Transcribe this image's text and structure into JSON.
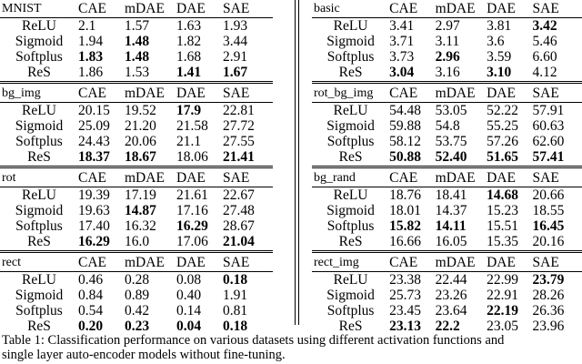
{
  "columns": [
    "CAE",
    "mDAE",
    "DAE",
    "SAE"
  ],
  "activations": [
    "ReLU",
    "Sigmoid",
    "Softplus",
    "ReS"
  ],
  "left_tables": [
    {
      "name": "MNIST",
      "rows": [
        [
          {
            "v": "2.1"
          },
          {
            "v": "1.57"
          },
          {
            "v": "1.63"
          },
          {
            "v": "1.93"
          }
        ],
        [
          {
            "v": "1.94"
          },
          {
            "v": "1.48",
            "b": true
          },
          {
            "v": "1.82"
          },
          {
            "v": "3.44"
          }
        ],
        [
          {
            "v": "1.83",
            "b": true
          },
          {
            "v": "1.48",
            "b": true
          },
          {
            "v": "1.68"
          },
          {
            "v": "2.91"
          }
        ],
        [
          {
            "v": "1.86"
          },
          {
            "v": "1.53"
          },
          {
            "v": "1.41",
            "b": true
          },
          {
            "v": "1.67",
            "b": true
          }
        ]
      ]
    },
    {
      "name": "bg_img",
      "rows": [
        [
          {
            "v": "20.15"
          },
          {
            "v": "19.52"
          },
          {
            "v": "17.9",
            "b": true
          },
          {
            "v": "22.81"
          }
        ],
        [
          {
            "v": "25.09"
          },
          {
            "v": "21.20"
          },
          {
            "v": "21.58"
          },
          {
            "v": "27.72"
          }
        ],
        [
          {
            "v": "24.43"
          },
          {
            "v": "20.06"
          },
          {
            "v": "21.1"
          },
          {
            "v": "27.55"
          }
        ],
        [
          {
            "v": "18.37",
            "b": true
          },
          {
            "v": "18.67",
            "b": true
          },
          {
            "v": "18.06"
          },
          {
            "v": "21.41",
            "b": true
          }
        ]
      ]
    },
    {
      "name": "rot",
      "rows": [
        [
          {
            "v": "19.39"
          },
          {
            "v": "17.19"
          },
          {
            "v": "21.61"
          },
          {
            "v": "22.67"
          }
        ],
        [
          {
            "v": "19.63"
          },
          {
            "v": "14.87",
            "b": true
          },
          {
            "v": "17.16"
          },
          {
            "v": "27.48"
          }
        ],
        [
          {
            "v": "17.40"
          },
          {
            "v": "16.32"
          },
          {
            "v": "16.29",
            "b": true
          },
          {
            "v": "28.67"
          }
        ],
        [
          {
            "v": "16.29",
            "b": true
          },
          {
            "v": "16.0"
          },
          {
            "v": "17.06"
          },
          {
            "v": "21.04",
            "b": true
          }
        ]
      ]
    },
    {
      "name": "rect",
      "rows": [
        [
          {
            "v": "0.46"
          },
          {
            "v": "0.28"
          },
          {
            "v": "0.08"
          },
          {
            "v": "0.18",
            "b": true
          }
        ],
        [
          {
            "v": "0.84"
          },
          {
            "v": "0.89"
          },
          {
            "v": "0.40"
          },
          {
            "v": "1.91"
          }
        ],
        [
          {
            "v": "0.54"
          },
          {
            "v": "0.42"
          },
          {
            "v": "0.14"
          },
          {
            "v": "0.81"
          }
        ],
        [
          {
            "v": "0.20",
            "b": true
          },
          {
            "v": "0.23",
            "b": true
          },
          {
            "v": "0.04",
            "b": true
          },
          {
            "v": "0.18",
            "b": true
          }
        ]
      ]
    }
  ],
  "right_tables": [
    {
      "name": "basic",
      "rows": [
        [
          {
            "v": "3.41"
          },
          {
            "v": "2.97"
          },
          {
            "v": "3.81"
          },
          {
            "v": "3.42",
            "b": true
          }
        ],
        [
          {
            "v": "3.71"
          },
          {
            "v": "3.11"
          },
          {
            "v": "3.6"
          },
          {
            "v": "5.46"
          }
        ],
        [
          {
            "v": "3.73"
          },
          {
            "v": "2.96",
            "b": true
          },
          {
            "v": "3.59"
          },
          {
            "v": "6.60"
          }
        ],
        [
          {
            "v": "3.04",
            "b": true
          },
          {
            "v": "3.16"
          },
          {
            "v": "3.10",
            "b": true
          },
          {
            "v": "4.12"
          }
        ]
      ]
    },
    {
      "name": "rot_bg_img",
      "rows": [
        [
          {
            "v": "54.48"
          },
          {
            "v": "53.05"
          },
          {
            "v": "52.22"
          },
          {
            "v": "57.91"
          }
        ],
        [
          {
            "v": "59.88"
          },
          {
            "v": "54.8"
          },
          {
            "v": "55.25"
          },
          {
            "v": "60.63"
          }
        ],
        [
          {
            "v": "58.12"
          },
          {
            "v": "53.75"
          },
          {
            "v": "57.26"
          },
          {
            "v": "62.60"
          }
        ],
        [
          {
            "v": "50.88",
            "b": true
          },
          {
            "v": "52.40",
            "b": true
          },
          {
            "v": "51.65",
            "b": true
          },
          {
            "v": "57.41",
            "b": true
          }
        ]
      ]
    },
    {
      "name": "bg_rand",
      "rows": [
        [
          {
            "v": "18.76"
          },
          {
            "v": "18.41"
          },
          {
            "v": "14.68",
            "b": true
          },
          {
            "v": "20.66"
          }
        ],
        [
          {
            "v": "18.01"
          },
          {
            "v": "14.37"
          },
          {
            "v": "15.23"
          },
          {
            "v": "18.55"
          }
        ],
        [
          {
            "v": "15.82",
            "b": true
          },
          {
            "v": "14.11",
            "b": true
          },
          {
            "v": "15.51"
          },
          {
            "v": "16.45",
            "b": true
          }
        ],
        [
          {
            "v": "16.66"
          },
          {
            "v": "16.05"
          },
          {
            "v": "15.35"
          },
          {
            "v": "20.16"
          }
        ]
      ]
    },
    {
      "name": "rect_img",
      "rows": [
        [
          {
            "v": "23.38"
          },
          {
            "v": "22.44"
          },
          {
            "v": "22.99"
          },
          {
            "v": "23.79",
            "b": true
          }
        ],
        [
          {
            "v": "25.73"
          },
          {
            "v": "23.26"
          },
          {
            "v": "22.91"
          },
          {
            "v": "28.26"
          }
        ],
        [
          {
            "v": "23.45"
          },
          {
            "v": "23.64"
          },
          {
            "v": "22.19",
            "b": true
          },
          {
            "v": "26.36"
          }
        ],
        [
          {
            "v": "23.13",
            "b": true
          },
          {
            "v": "22.2",
            "b": true
          },
          {
            "v": "23.05"
          },
          {
            "v": "23.96"
          }
        ]
      ]
    }
  ],
  "caption": "Table 1:  Classification performance on various datasets using different activation functions and\nsingle layer auto-encoder models without fine-tuning."
}
